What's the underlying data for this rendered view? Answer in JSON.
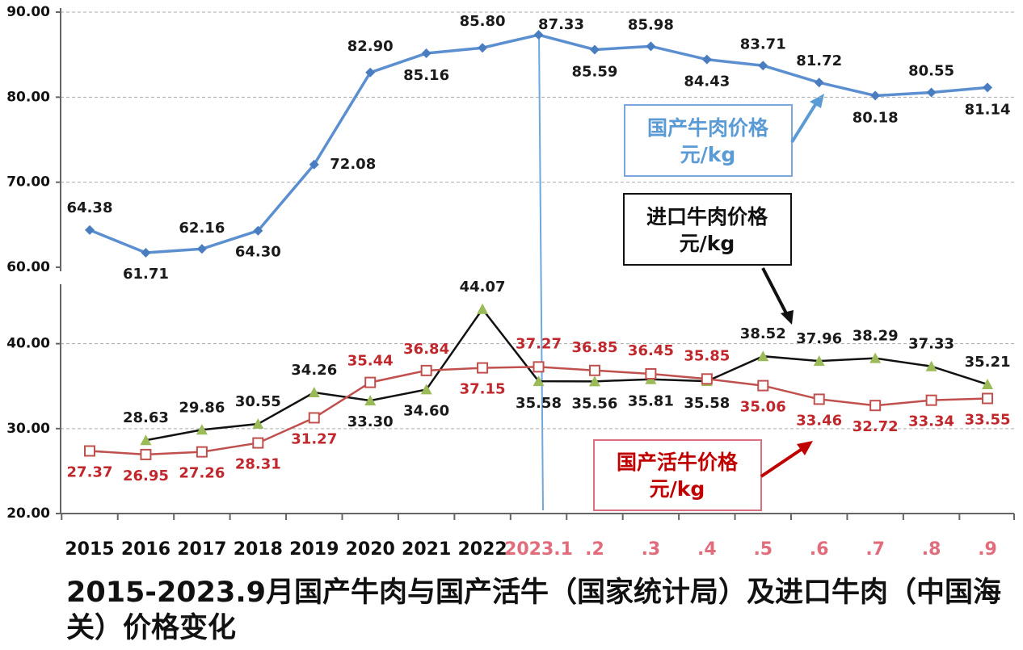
{
  "chart_data": [
    {
      "type": "line",
      "ylim": [
        60,
        90
      ],
      "yticks": [
        {
          "value": 60,
          "label": "60.00"
        },
        {
          "value": 70,
          "label": "70.00"
        },
        {
          "value": 80,
          "label": "80.00"
        },
        {
          "value": 90,
          "label": "90.00"
        }
      ],
      "grid": true,
      "series": [
        {
          "name": "国产牛肉价格",
          "color": "#5b8fd0",
          "marker": "diamond",
          "marker_color": "#4a7cc0",
          "label_color": "#1a1a1a",
          "values": [
            64.38,
            61.71,
            62.16,
            64.3,
            72.08,
            82.9,
            85.16,
            85.8,
            87.33,
            85.59,
            85.98,
            84.43,
            83.71,
            81.72,
            80.18,
            80.55,
            81.14
          ],
          "value_labels": [
            "64.38",
            "61.71",
            "62.16",
            "64.30",
            "72.08",
            "82.90",
            "85.16",
            "85.80",
            "87.33",
            "85.59",
            "85.98",
            "84.43",
            "83.71",
            "81.72",
            "80.18",
            "80.55",
            "81.14"
          ]
        }
      ],
      "annotations": [
        {
          "lines": [
            "国产牛肉价格",
            "元/kg"
          ],
          "color": "#5b9bd5"
        }
      ]
    },
    {
      "type": "line",
      "title": "2015-2023.9月国产牛肉与国产活牛（国家统计局）及进口牛肉（中国海关）价格变化",
      "categories": [
        "2015",
        "2016",
        "2017",
        "2018",
        "2019",
        "2020",
        "2021",
        "2022",
        "2023.1",
        ".2",
        ".3",
        ".4",
        ".5",
        ".6",
        ".7",
        ".8",
        ".9"
      ],
      "category_label_colors": [
        "#111",
        "#111",
        "#111",
        "#111",
        "#111",
        "#111",
        "#111",
        "#111",
        "#e06c7c",
        "#e06c7c",
        "#e06c7c",
        "#e06c7c",
        "#e06c7c",
        "#e06c7c",
        "#e06c7c",
        "#e06c7c",
        "#e06c7c"
      ],
      "ylim": [
        20,
        47
      ],
      "yticks": [
        {
          "value": 20,
          "label": "20.00"
        },
        {
          "value": 30,
          "label": "30.00"
        },
        {
          "value": 40,
          "label": "40.00"
        }
      ],
      "grid": true,
      "series": [
        {
          "name": "进口牛肉价格",
          "color": "#111111",
          "marker": "triangle",
          "marker_color": "#9bbb59",
          "label_color": "#1a1a1a",
          "values": [
            null,
            28.63,
            29.86,
            30.55,
            34.26,
            33.3,
            34.6,
            44.07,
            35.58,
            35.56,
            35.81,
            35.58,
            38.52,
            37.96,
            38.29,
            37.33,
            35.21
          ],
          "value_labels": [
            null,
            "28.63",
            "29.86",
            "30.55",
            "34.26",
            "33.30",
            "34.60",
            "44.07",
            "35.58",
            "35.56",
            "35.81",
            "35.58",
            "38.52",
            "37.96",
            "38.29",
            "37.33",
            "35.21"
          ]
        },
        {
          "name": "国产活牛价格",
          "color": "#c0504d",
          "marker": "square",
          "marker_color": "#c0504d",
          "label_color": "#c0282d",
          "values": [
            27.37,
            26.95,
            27.26,
            28.31,
            31.27,
            35.44,
            36.84,
            37.15,
            37.27,
            36.85,
            36.45,
            35.85,
            35.06,
            33.46,
            32.72,
            33.34,
            33.55
          ],
          "value_labels": [
            "27.37",
            "26.95",
            "27.26",
            "28.31",
            "31.27",
            "35.44",
            "36.84",
            "37.15",
            "37.27",
            "36.85",
            "36.45",
            "35.85",
            "35.06",
            "33.46",
            "32.72",
            "33.34",
            "33.55"
          ]
        }
      ],
      "annotations": [
        {
          "lines": [
            "进口牛肉价格",
            "元/kg"
          ],
          "color": "#111111"
        },
        {
          "lines": [
            "国产活牛价格",
            "元/kg"
          ],
          "color": "#c00000"
        }
      ]
    }
  ]
}
